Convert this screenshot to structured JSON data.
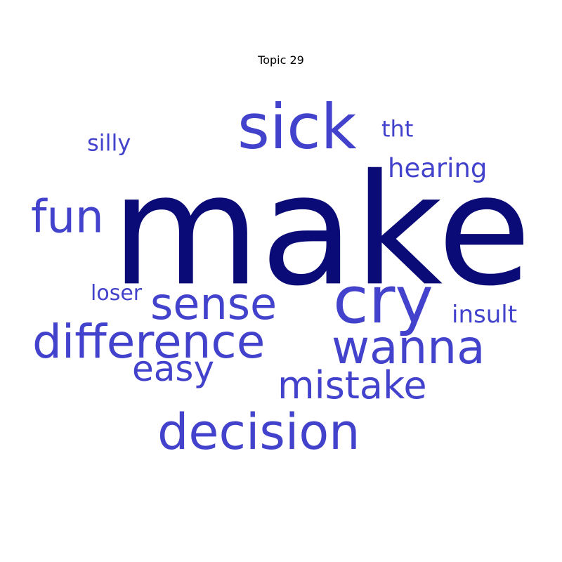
{
  "title": "Topic 29",
  "colors": {
    "primary_word": "#0b0b78",
    "secondary_word": "#4242cc",
    "background": "#ffffff"
  },
  "words": {
    "make": "make",
    "sick": "sick",
    "cry": "cry",
    "fun": "fun",
    "decision": "decision",
    "difference": "difference",
    "wanna": "wanna",
    "sense": "sense",
    "mistake": "mistake",
    "easy": "easy",
    "hearing": "hearing",
    "insult": "insult",
    "tht": "tht",
    "silly": "silly",
    "loser": "loser"
  }
}
